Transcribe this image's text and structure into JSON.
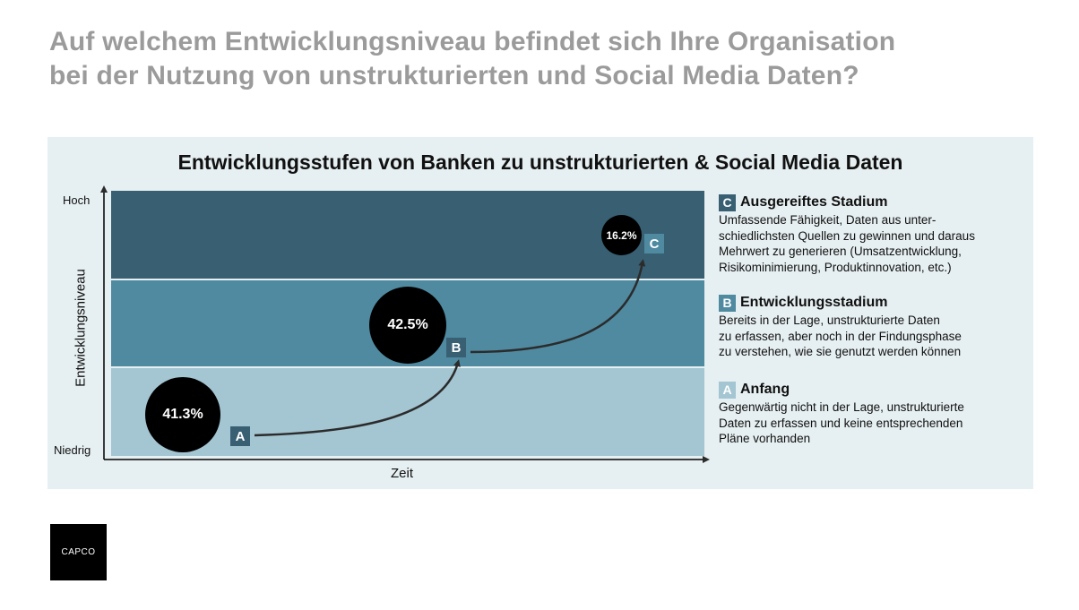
{
  "page": {
    "title_line1": "Auf welchem Entwicklungsniveau befindet sich Ihre Organisation",
    "title_line2": "bei der Nutzung von unstrukturierten und Social Media Daten?"
  },
  "diagram": {
    "title": "Entwicklungsstufen von Banken zu unstrukturierten & Social Media Daten",
    "y_axis": {
      "label": "Entwicklungsniveau",
      "top": "Hoch",
      "bottom": "Niedrig"
    },
    "x_axis": {
      "label": "Zeit"
    },
    "stages": {
      "a": {
        "letter": "A",
        "percent": "41.3%",
        "color": "#a4c5d2"
      },
      "b": {
        "letter": "B",
        "percent": "42.5%",
        "color": "#4f8aa0"
      },
      "c": {
        "letter": "C",
        "percent": "16.2%",
        "color": "#385f72"
      }
    }
  },
  "legend": {
    "c": {
      "letter": "C",
      "heading": "Ausgereiftes Stadium",
      "lines": [
        "Umfassende Fähigkeit, Daten aus unter-",
        "schiedlichsten Quellen zu gewinnen und daraus",
        "Mehrwert zu generieren (Umsatzentwicklung,",
        "Risikominimierung, Produktinnovation, etc.)"
      ]
    },
    "b": {
      "letter": "B",
      "heading": "Entwicklungsstadium",
      "lines": [
        "Bereits in der Lage, unstrukturierte Daten",
        "zu erfassen, aber noch in der Findungsphase",
        "zu verstehen, wie sie genutzt werden können"
      ]
    },
    "a": {
      "letter": "A",
      "heading": "Anfang",
      "lines": [
        "Gegenwärtig nicht in der Lage, unstrukturierte",
        "Daten zu erfassen und keine entsprechenden",
        "Pläne vorhanden"
      ]
    }
  },
  "logo": {
    "text": "CAPCO"
  }
}
